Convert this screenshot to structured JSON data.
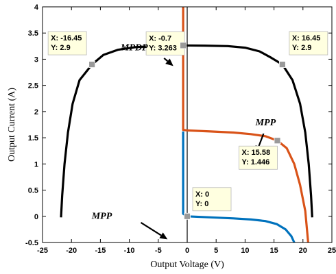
{
  "chart_data": {
    "type": "line",
    "xlabel": "Output Voltage (V)",
    "ylabel": "Output Current (A)",
    "xlim": [
      -25,
      25
    ],
    "ylim": [
      -0.5,
      4
    ],
    "x_ticks": [
      -25,
      -20,
      -15,
      -10,
      -5,
      0,
      5,
      10,
      15,
      20,
      25
    ],
    "y_ticks": [
      -0.5,
      0,
      0.5,
      1,
      1.5,
      2,
      2.5,
      3,
      3.5,
      4
    ],
    "y_tick_labels": [
      "-0.5",
      "0",
      "0.5",
      "1",
      "1.5",
      "2",
      "2.5",
      "3",
      "3.5",
      "4"
    ],
    "grid": false,
    "series": [
      {
        "color": "#000000",
        "points": [
          [
            -21.8,
            -0.02
          ],
          [
            -21.6,
            0.4
          ],
          [
            -21.2,
            1.0
          ],
          [
            -20.6,
            1.6
          ],
          [
            -19.8,
            2.15
          ],
          [
            -18.6,
            2.6
          ],
          [
            -16.45,
            2.9
          ],
          [
            -14.5,
            3.08
          ],
          [
            -12,
            3.18
          ],
          [
            -9,
            3.23
          ],
          [
            -5,
            3.255
          ],
          [
            -0.7,
            3.263
          ],
          [
            3,
            3.26
          ],
          [
            7,
            3.25
          ],
          [
            10,
            3.22
          ],
          [
            12.5,
            3.15
          ],
          [
            14.5,
            3.03
          ],
          [
            16.45,
            2.9
          ],
          [
            18.2,
            2.6
          ],
          [
            19.5,
            2.15
          ],
          [
            20.4,
            1.6
          ],
          [
            21,
            1.0
          ],
          [
            21.4,
            0.4
          ],
          [
            21.6,
            -0.02
          ]
        ]
      },
      {
        "color": "#D95319",
        "points": [
          [
            -0.7,
            4.0
          ],
          [
            -0.7,
            1.65
          ],
          [
            0,
            1.64
          ],
          [
            4,
            1.62
          ],
          [
            8,
            1.6
          ],
          [
            11,
            1.57
          ],
          [
            13.5,
            1.53
          ],
          [
            15.58,
            1.446
          ],
          [
            17.2,
            1.3
          ],
          [
            18.5,
            1.0
          ],
          [
            19.5,
            0.6
          ],
          [
            20.4,
            0.1
          ],
          [
            20.9,
            -0.5
          ]
        ]
      },
      {
        "color": "#0072BD",
        "points": [
          [
            -0.7,
            1.62
          ],
          [
            -0.7,
            0.05
          ],
          [
            0,
            0.0
          ],
          [
            4,
            -0.02
          ],
          [
            8,
            -0.04
          ],
          [
            11,
            -0.06
          ],
          [
            13.5,
            -0.09
          ],
          [
            15.5,
            -0.15
          ],
          [
            17,
            -0.25
          ],
          [
            18,
            -0.38
          ],
          [
            18.5,
            -0.5
          ]
        ]
      }
    ],
    "datatips": [
      {
        "x": -16.45,
        "y": 2.9,
        "lines": [
          "X: -16.45",
          "Y: 2.9"
        ]
      },
      {
        "x": 16.45,
        "y": 2.9,
        "lines": [
          "X: 16.45",
          "Y: 2.9"
        ]
      },
      {
        "x": -0.7,
        "y": 3.263,
        "lines": [
          "X: -0.7",
          "Y: 3.263"
        ]
      },
      {
        "x": 15.58,
        "y": 1.446,
        "lines": [
          "X: 15.58",
          "Y: 1.446"
        ]
      },
      {
        "x": 0,
        "y": 0,
        "lines": [
          "X: 0",
          "Y: 0"
        ]
      }
    ],
    "annotations": [
      {
        "text": "MPDP",
        "x": -11.5,
        "y": 3.17
      },
      {
        "text": "MPP",
        "x": 11.8,
        "y": 1.74
      },
      {
        "text": "MPP",
        "x": -16.5,
        "y": -0.05
      }
    ],
    "arrows": [
      {
        "from": [
          -4,
          3.02
        ],
        "to": [
          -2.4,
          2.87
        ]
      },
      {
        "from": [
          13.2,
          1.58
        ],
        "to": [
          11.9,
          1.2
        ]
      },
      {
        "from": [
          -8,
          -0.12
        ],
        "to": [
          -3.4,
          -0.44
        ]
      }
    ]
  }
}
